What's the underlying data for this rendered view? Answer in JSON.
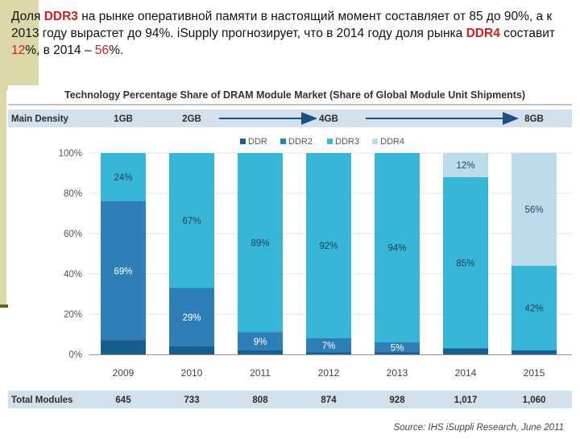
{
  "heading": {
    "p1": "Доля ",
    "p2": "DDR3",
    "p3": " на рынке оперативной памяти в настоящий момент составляет от 85 до 90%, а к 2013 году вырастет до 94%. iSupply прогнозирует, что в 2014 году доля рынка ",
    "p4": "DDR4",
    "p5": " составит ",
    "p6": "12",
    "p7": "%, в 2014 – ",
    "p8": "56",
    "p9": "%."
  },
  "colors": {
    "DDR": "#1a5e8e",
    "DDR2": "#2e7fb8",
    "DDR3": "#38b6d8",
    "DDR4": "#bcdcec",
    "header_band": "#d2e0ec",
    "footer_band": "#d2e0ec",
    "arrow": "#1a4f7f"
  },
  "chart_data": {
    "type": "bar",
    "stacked": true,
    "title": "Technology Percentage Share of DRAM Module Market (Share of Global Module Unit Shipments)",
    "categories": [
      "2009",
      "2010",
      "2011",
      "2012",
      "2013",
      "2014",
      "2015"
    ],
    "series": [
      {
        "name": "DDR",
        "values": [
          7,
          4,
          2,
          1,
          1,
          3,
          2
        ]
      },
      {
        "name": "DDR2",
        "values": [
          69,
          29,
          9,
          7,
          5,
          0,
          0
        ]
      },
      {
        "name": "DDR3",
        "values": [
          24,
          67,
          89,
          92,
          94,
          85,
          42
        ]
      },
      {
        "name": "DDR4",
        "values": [
          0,
          0,
          0,
          0,
          0,
          12,
          56
        ]
      }
    ],
    "data_labels": [
      {
        "year": "2009",
        "series": "DDR3",
        "text": "24%"
      },
      {
        "year": "2009",
        "series": "DDR2",
        "text": "69%"
      },
      {
        "year": "2010",
        "series": "DDR3",
        "text": "67%"
      },
      {
        "year": "2010",
        "series": "DDR2",
        "text": "29%"
      },
      {
        "year": "2011",
        "series": "DDR3",
        "text": "89%"
      },
      {
        "year": "2011",
        "series": "DDR2",
        "text": "9%"
      },
      {
        "year": "2012",
        "series": "DDR3",
        "text": "92%"
      },
      {
        "year": "2012",
        "series": "DDR2",
        "text": "7%"
      },
      {
        "year": "2013",
        "series": "DDR3",
        "text": "94%"
      },
      {
        "year": "2013",
        "series": "DDR2",
        "text": "5%"
      },
      {
        "year": "2014",
        "series": "DDR4",
        "text": "12%"
      },
      {
        "year": "2014",
        "series": "DDR3",
        "text": "85%"
      },
      {
        "year": "2015",
        "series": "DDR4",
        "text": "56%"
      },
      {
        "year": "2015",
        "series": "DDR3",
        "text": "42%"
      }
    ],
    "yticks": [
      "0%",
      "20%",
      "40%",
      "60%",
      "80%",
      "100%"
    ],
    "ylim": [
      0,
      100
    ],
    "legend_position": "top-center",
    "main_density": {
      "label": "Main Density",
      "items": [
        "1GB",
        "2GB",
        "4GB",
        "8GB"
      ],
      "columns": [
        "2009",
        "2010",
        "2012",
        "2015"
      ]
    },
    "total_modules": {
      "label": "Total Modules",
      "values": [
        "645",
        "733",
        "808",
        "874",
        "928",
        "1,017",
        "1,060"
      ]
    },
    "source": "Source: IHS iSuppli Research, June 2011"
  }
}
